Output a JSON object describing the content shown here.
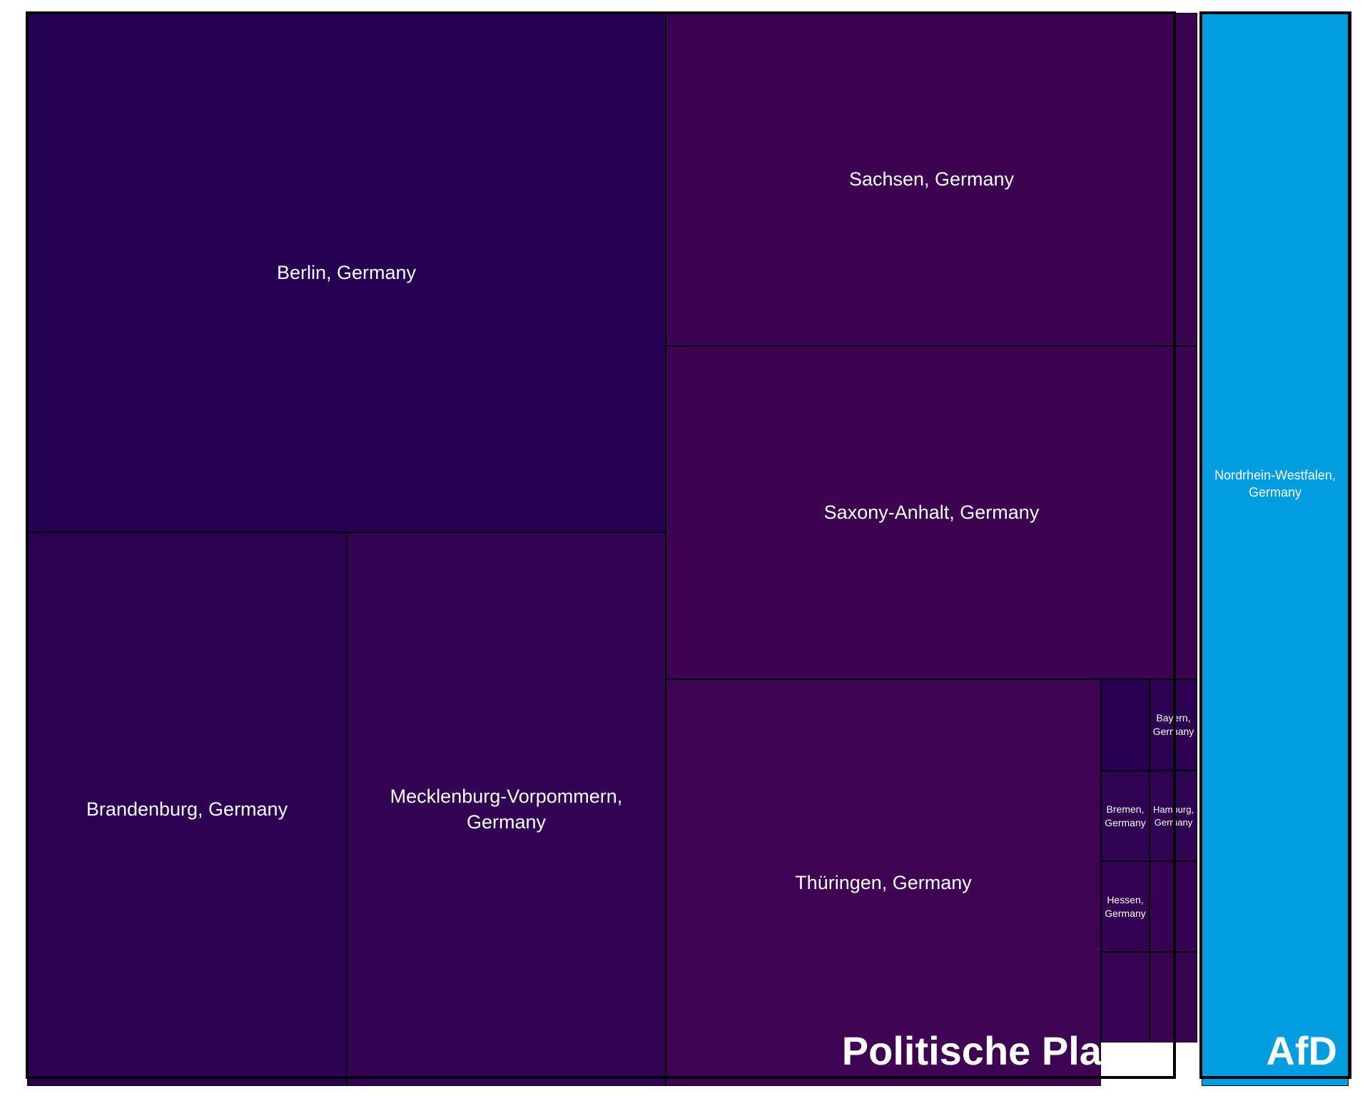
{
  "chart_data": {
    "type": "treemap",
    "title": "",
    "groups": [
      {
        "name": "Politische Player",
        "color": "#2a0a5a",
        "items": [
          {
            "label": "Berlin, Germany",
            "color": "#260052"
          },
          {
            "label": "Brandenburg, Germany",
            "color": "#2c0152"
          },
          {
            "label": "Mecklenburg-Vorpommern,\nGermany",
            "color": "#310352"
          },
          {
            "label": "Sachsen, Germany",
            "color": "#3b0350"
          },
          {
            "label": "Saxony-Anhalt, Germany",
            "color": "#3b0350"
          },
          {
            "label": "Thüringen, Germany",
            "color": "#3e0352"
          },
          {
            "label": "",
            "color": "#270052"
          },
          {
            "label": "Bayern,\nGermany",
            "color": "#2c0152"
          },
          {
            "label": "Bremen,\nGermany",
            "color": "#2f0252"
          },
          {
            "label": "Hamburg,\nGermany",
            "color": "#2f0252"
          },
          {
            "label": "Hessen,\nGermany",
            "color": "#330352"
          },
          {
            "label": "",
            "color": "#360352"
          },
          {
            "label": "",
            "color": "#380352"
          },
          {
            "label": "",
            "color": "#3a0352"
          }
        ]
      },
      {
        "name": "AfD",
        "color": "#009ee0",
        "items": [
          {
            "label": "Nordrhein-Westfalen,\nGermany",
            "color": "#009ee0"
          }
        ]
      }
    ]
  }
}
